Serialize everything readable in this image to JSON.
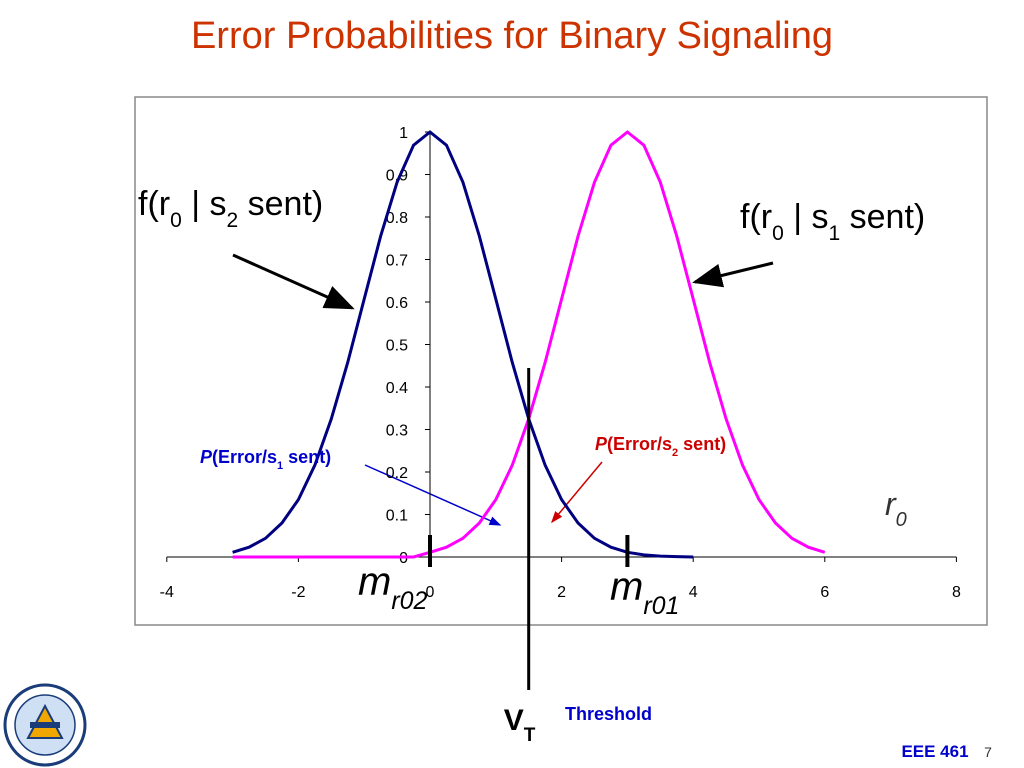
{
  "title": "Error Probabilities for Binary Signaling",
  "chart_data": {
    "type": "line",
    "x": [
      -3,
      -2.75,
      -2.5,
      -2.25,
      -2,
      -1.75,
      -1.5,
      -1.25,
      -1,
      -0.75,
      -0.5,
      -0.25,
      0,
      0.25,
      0.5,
      0.75,
      1,
      1.25,
      1.5,
      1.75,
      2,
      2.25,
      2.5,
      2.75,
      3,
      3.25,
      3.5,
      3.75,
      4,
      4.25,
      4.5,
      4.75,
      5,
      5.25,
      5.5,
      5.75,
      6
    ],
    "series": [
      {
        "label": [
          {
            "text": "f(r"
          },
          {
            "text": "0",
            "sub": true
          },
          {
            "text": " | s"
          },
          {
            "text": "2",
            "sub": true
          },
          {
            "text": " sent)"
          }
        ],
        "color": "#000080",
        "values": [
          0.011,
          0.023,
          0.044,
          0.08,
          0.135,
          0.216,
          0.325,
          0.458,
          0.607,
          0.755,
          0.882,
          0.969,
          1,
          0.969,
          0.882,
          0.755,
          0.607,
          0.458,
          0.325,
          0.216,
          0.135,
          0.08,
          0.044,
          0.023,
          0.011,
          0.005,
          0.002,
          0.001,
          0,
          null,
          null,
          null,
          null,
          null,
          null,
          null,
          null
        ]
      },
      {
        "label": [
          {
            "text": "f(r"
          },
          {
            "text": "0",
            "sub": true
          },
          {
            "text": " | s"
          },
          {
            "text": "1",
            "sub": true
          },
          {
            "text": " sent)"
          }
        ],
        "color": "#ff00ff",
        "values": [
          0,
          0,
          0,
          0,
          0,
          0,
          0,
          0,
          0,
          0,
          0,
          0,
          0.011,
          0.023,
          0.044,
          0.08,
          0.135,
          0.216,
          0.325,
          0.458,
          0.607,
          0.755,
          0.882,
          0.969,
          1,
          0.969,
          0.882,
          0.755,
          0.607,
          0.458,
          0.325,
          0.216,
          0.135,
          0.08,
          0.044,
          0.023,
          0.011
        ]
      }
    ],
    "xlim": [
      -4,
      8
    ],
    "xticks": [
      -4,
      -2,
      0,
      2,
      4,
      6,
      8
    ],
    "ylim": [
      0,
      1
    ],
    "yticks": [
      0,
      0.1,
      0.2,
      0.3,
      0.4,
      0.5,
      0.6,
      0.7,
      0.8,
      0.9,
      1
    ],
    "x_label": [
      {
        "text": "r"
      },
      {
        "text": "0",
        "sub": true
      }
    ],
    "threshold": {
      "value": 1.5,
      "label": [
        {
          "text": "V"
        },
        {
          "text": "T",
          "sub": true
        }
      ],
      "caption": "Threshold"
    },
    "means": [
      {
        "value": 0,
        "label": [
          {
            "text": "m"
          },
          {
            "text": "r02",
            "sub": true
          }
        ]
      },
      {
        "value": 3,
        "label": [
          {
            "text": "m"
          },
          {
            "text": "r01",
            "sub": true
          }
        ]
      }
    ],
    "error_labels": [
      {
        "color": "#0000cc",
        "parts": [
          {
            "text": "P",
            "italic": true
          },
          {
            "text": "(Error/s"
          },
          {
            "text": "1",
            "sub": true
          },
          {
            "text": " sent)"
          }
        ]
      },
      {
        "color": "#cc0000",
        "parts": [
          {
            "text": "P",
            "italic": true
          },
          {
            "text": "(Error/s"
          },
          {
            "text": "2",
            "sub": true
          },
          {
            "text": " sent)"
          }
        ]
      }
    ]
  },
  "footer": {
    "course": "EEE 461",
    "page": 7
  }
}
